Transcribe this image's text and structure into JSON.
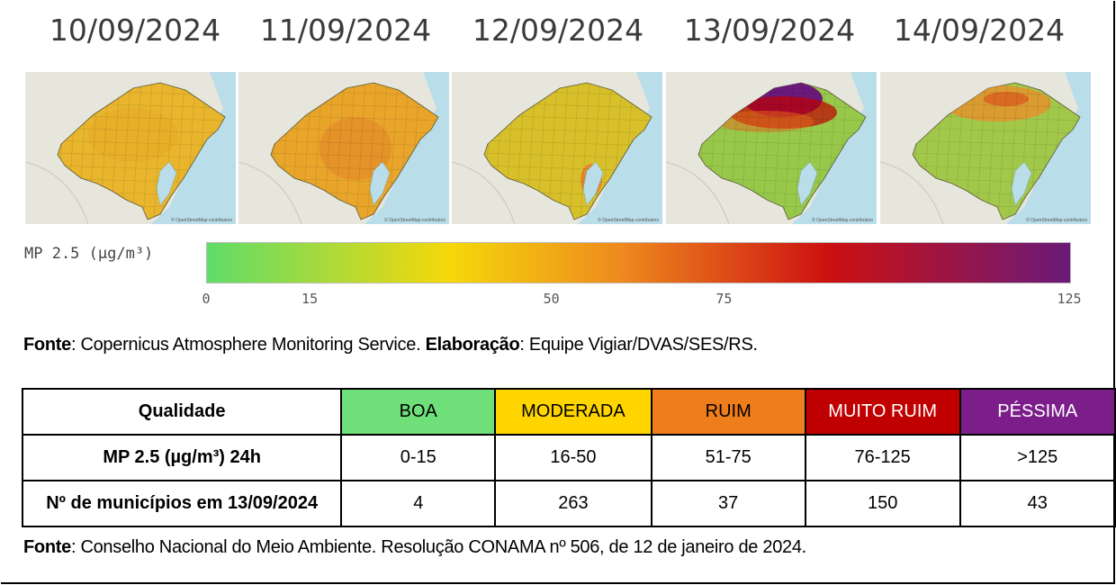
{
  "dates": [
    "10/09/2024",
    "11/09/2024",
    "12/09/2024",
    "13/09/2024",
    "14/09/2024"
  ],
  "maps": [
    {
      "date": "10/09/2024",
      "fill": "#e8b52c",
      "hotspot": "#e6a022",
      "hotspot_level": "moderada"
    },
    {
      "date": "11/09/2024",
      "fill": "#e8a52a",
      "hotspot": "#e3862a",
      "hotspot_level": "moderada-ruim"
    },
    {
      "date": "12/09/2024",
      "fill": "#d8c02a",
      "hotspot": "#e6802a",
      "hotspot_level": "ruim (litoral)"
    },
    {
      "date": "13/09/2024",
      "fill": "#98c84a",
      "hotspot": "#6a1a7a",
      "hotspot_level": "péssima (norte)"
    },
    {
      "date": "14/09/2024",
      "fill": "#a2c84a",
      "hotspot": "#e8902a",
      "hotspot_level": "ruim (norte)"
    }
  ],
  "map_attribution": "© OpenStreetMap contributors",
  "legend": {
    "label": "MP 2.5 (µg/m³)",
    "ticks": [
      "0",
      "15",
      "50",
      "75",
      "125"
    ],
    "tick_values": [
      0,
      15,
      50,
      75,
      125
    ],
    "range": [
      0,
      125
    ],
    "colors": [
      "#5fdc6a",
      "#f5d80a",
      "#ee8a1e",
      "#cc1010",
      "#6a1a7a"
    ]
  },
  "source1": {
    "bold1": "Fonte",
    "text1": ": Copernicus Atmosphere Monitoring Service. ",
    "bold2": "Elaboração",
    "text2": ": Equipe Vigiar/DVAS/SES/RS."
  },
  "table": {
    "header": "Qualidade",
    "categories": [
      {
        "label": "BOA",
        "color": "#6fdf7a",
        "text_color": "#000000"
      },
      {
        "label": "MODERADA",
        "color": "#ffd500",
        "text_color": "#000000"
      },
      {
        "label": "RUIM",
        "color": "#ee7d1c",
        "text_color": "#000000"
      },
      {
        "label": "MUITO RUIM",
        "color": "#c00000",
        "text_color": "#ffffff"
      },
      {
        "label": "PÉSSIMA",
        "color": "#7b1e8a",
        "text_color": "#ffffff"
      }
    ],
    "rows": [
      {
        "label": "MP 2.5 (µg/m³) 24h",
        "values": [
          "0-15",
          "16-50",
          "51-75",
          "76-125",
          ">125"
        ]
      },
      {
        "label": "Nº de municípios em 13/09/2024",
        "values": [
          "4",
          "263",
          "37",
          "150",
          "43"
        ]
      }
    ]
  },
  "source2": {
    "bold1": "Fonte",
    "text1": ": Conselho Nacional do Meio Ambiente. Resolução CONAMA nº 506, de 12 de janeiro de 2024."
  }
}
